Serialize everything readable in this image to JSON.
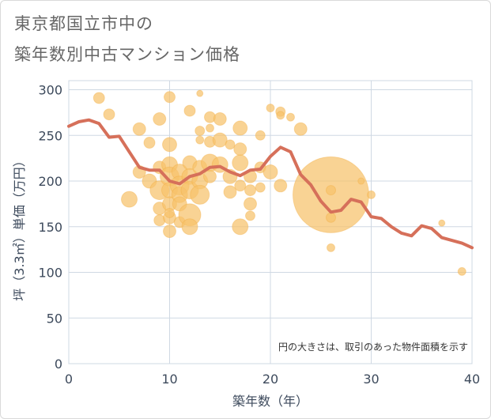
{
  "title_line1": "東京都国立市中の",
  "title_line2": "築年数別中古マンション価格",
  "colors": {
    "bubble": "#f6c26b",
    "bubble_stroke": "#f0a83a",
    "line": "#d6705a",
    "grid": "#cfd8e3",
    "axis": "#3d4a5c"
  },
  "chart_data": {
    "type": "scatter",
    "xlabel": "築年数（年）",
    "ylabel": "坪（3.3㎡）単価（万円）",
    "xlim": [
      0,
      40
    ],
    "ylim": [
      0,
      310
    ],
    "xticks": [
      "0",
      "10",
      "20",
      "30",
      "40"
    ],
    "yticks": [
      "0",
      "50",
      "100",
      "150",
      "200",
      "250",
      "300"
    ],
    "xtick_values": [
      0,
      10,
      20,
      30,
      40
    ],
    "ytick_values": [
      0,
      50,
      100,
      150,
      200,
      250,
      300
    ],
    "annotation": "円の大きさは、取引のあった物件面積を示す",
    "bubbles": [
      {
        "x": 3,
        "y": 291,
        "r": 7
      },
      {
        "x": 4,
        "y": 273,
        "r": 7
      },
      {
        "x": 6,
        "y": 180,
        "r": 10
      },
      {
        "x": 7,
        "y": 257,
        "r": 8
      },
      {
        "x": 7,
        "y": 210,
        "r": 8
      },
      {
        "x": 8,
        "y": 242,
        "r": 7
      },
      {
        "x": 8,
        "y": 200,
        "r": 9
      },
      {
        "x": 9,
        "y": 268,
        "r": 8
      },
      {
        "x": 9,
        "y": 215,
        "r": 8
      },
      {
        "x": 9,
        "y": 190,
        "r": 12
      },
      {
        "x": 9,
        "y": 170,
        "r": 8
      },
      {
        "x": 9,
        "y": 157,
        "r": 7
      },
      {
        "x": 10,
        "y": 292,
        "r": 7
      },
      {
        "x": 10,
        "y": 240,
        "r": 9
      },
      {
        "x": 10,
        "y": 218,
        "r": 10
      },
      {
        "x": 10,
        "y": 205,
        "r": 12
      },
      {
        "x": 10,
        "y": 190,
        "r": 10
      },
      {
        "x": 10,
        "y": 175,
        "r": 9
      },
      {
        "x": 10,
        "y": 160,
        "r": 8
      },
      {
        "x": 10,
        "y": 145,
        "r": 8
      },
      {
        "x": 10,
        "y": 165,
        "r": 6
      },
      {
        "x": 11,
        "y": 210,
        "r": 10
      },
      {
        "x": 11,
        "y": 195,
        "r": 12
      },
      {
        "x": 11,
        "y": 185,
        "r": 10
      },
      {
        "x": 11,
        "y": 175,
        "r": 9
      },
      {
        "x": 11,
        "y": 155,
        "r": 7
      },
      {
        "x": 12,
        "y": 277,
        "r": 7
      },
      {
        "x": 12,
        "y": 220,
        "r": 9
      },
      {
        "x": 12,
        "y": 205,
        "r": 10
      },
      {
        "x": 12,
        "y": 190,
        "r": 11
      },
      {
        "x": 12,
        "y": 163,
        "r": 14
      },
      {
        "x": 12,
        "y": 150,
        "r": 10
      },
      {
        "x": 13,
        "y": 296,
        "r": 4
      },
      {
        "x": 13,
        "y": 255,
        "r": 6
      },
      {
        "x": 13,
        "y": 245,
        "r": 5
      },
      {
        "x": 13,
        "y": 215,
        "r": 9
      },
      {
        "x": 13,
        "y": 200,
        "r": 10
      },
      {
        "x": 13,
        "y": 185,
        "r": 12
      },
      {
        "x": 14,
        "y": 270,
        "r": 7
      },
      {
        "x": 14,
        "y": 258,
        "r": 5
      },
      {
        "x": 14,
        "y": 243,
        "r": 7
      },
      {
        "x": 14,
        "y": 220,
        "r": 11
      },
      {
        "x": 14,
        "y": 205,
        "r": 8
      },
      {
        "x": 15,
        "y": 268,
        "r": 8
      },
      {
        "x": 15,
        "y": 245,
        "r": 9
      },
      {
        "x": 15,
        "y": 218,
        "r": 10
      },
      {
        "x": 16,
        "y": 240,
        "r": 6
      },
      {
        "x": 16,
        "y": 205,
        "r": 9
      },
      {
        "x": 16,
        "y": 188,
        "r": 8
      },
      {
        "x": 17,
        "y": 258,
        "r": 9
      },
      {
        "x": 17,
        "y": 235,
        "r": 8
      },
      {
        "x": 17,
        "y": 220,
        "r": 10
      },
      {
        "x": 17,
        "y": 195,
        "r": 7
      },
      {
        "x": 17,
        "y": 150,
        "r": 10
      },
      {
        "x": 18,
        "y": 205,
        "r": 8
      },
      {
        "x": 18,
        "y": 190,
        "r": 7
      },
      {
        "x": 18,
        "y": 175,
        "r": 8
      },
      {
        "x": 18,
        "y": 162,
        "r": 6
      },
      {
        "x": 19,
        "y": 250,
        "r": 6
      },
      {
        "x": 19,
        "y": 215,
        "r": 7
      },
      {
        "x": 19,
        "y": 193,
        "r": 6
      },
      {
        "x": 20,
        "y": 280,
        "r": 5
      },
      {
        "x": 20,
        "y": 210,
        "r": 9
      },
      {
        "x": 21,
        "y": 276,
        "r": 6
      },
      {
        "x": 21,
        "y": 272,
        "r": 5
      },
      {
        "x": 21,
        "y": 195,
        "r": 8
      },
      {
        "x": 22,
        "y": 270,
        "r": 5
      },
      {
        "x": 23,
        "y": 257,
        "r": 8
      },
      {
        "x": 26,
        "y": 185,
        "r": 48
      },
      {
        "x": 26,
        "y": 190,
        "r": 6
      },
      {
        "x": 26,
        "y": 160,
        "r": 6
      },
      {
        "x": 26,
        "y": 127,
        "r": 5
      },
      {
        "x": 29,
        "y": 200,
        "r": 4
      },
      {
        "x": 30,
        "y": 185,
        "r": 5
      },
      {
        "x": 37,
        "y": 154,
        "r": 4
      },
      {
        "x": 39,
        "y": 101,
        "r": 5
      }
    ],
    "series": [
      {
        "x": [
          0,
          1,
          2,
          3,
          4,
          5,
          6,
          7,
          8,
          9,
          10,
          11,
          12,
          13,
          14,
          15,
          16,
          17,
          18,
          19,
          20,
          21,
          22,
          23,
          24,
          25,
          26,
          27,
          28,
          29,
          30,
          31,
          32,
          33,
          34,
          35,
          36,
          37,
          38,
          39,
          40
        ],
        "values": [
          260,
          265,
          267,
          263,
          248,
          249,
          232,
          215,
          212,
          212,
          200,
          197,
          205,
          208,
          215,
          216,
          210,
          206,
          212,
          213,
          227,
          237,
          232,
          207,
          196,
          178,
          166,
          168,
          180,
          177,
          161,
          159,
          150,
          143,
          140,
          151,
          148,
          138,
          135,
          132,
          127
        ]
      }
    ]
  }
}
